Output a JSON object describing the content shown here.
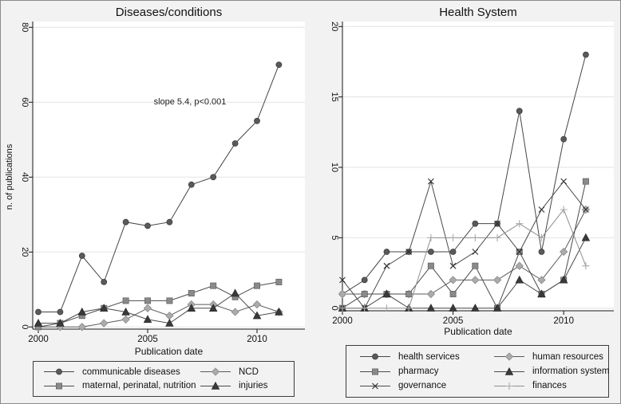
{
  "figure": {
    "background": "#f2f2f2",
    "border_color": "#8a8a8a",
    "plot_background": "#ffffff",
    "gridline_color": "#e3e3e3",
    "axis_color": "#141414"
  },
  "chart_data": [
    {
      "type": "line",
      "title": "Diseases/conditions",
      "xlabel": "Publication date",
      "ylabel": "n. of publications",
      "annotation": "slope 5.4, p<0.001",
      "x": [
        2000,
        2001,
        2002,
        2003,
        2004,
        2005,
        2006,
        2007,
        2008,
        2009,
        2010,
        2011
      ],
      "xticks": [
        2000,
        2005,
        2010
      ],
      "yticks": [
        0,
        20,
        40,
        60,
        80
      ],
      "ylim": [
        0,
        80
      ],
      "grid": true,
      "legend_position": "below",
      "series": [
        {
          "label": "communicable diseases",
          "marker": "circle",
          "fill": "#5a5a5a",
          "edge": "#3d3d3d",
          "line": "#454545",
          "values": [
            4,
            4,
            19,
            12,
            28,
            27,
            28,
            38,
            40,
            49,
            55,
            70
          ]
        },
        {
          "label": "NCD",
          "marker": "diamond",
          "fill": "#ababab",
          "edge": "#8a8a8a",
          "line": "#5a5a5a",
          "values": [
            0,
            0,
            0,
            1,
            2,
            5,
            3,
            6,
            6,
            4,
            6,
            4
          ]
        },
        {
          "label": "maternal, perinatal, nutrition",
          "marker": "square",
          "fill": "#8a8a8a",
          "edge": "#666666",
          "line": "#4a4a4a",
          "values": [
            0,
            1,
            3,
            5,
            7,
            7,
            7,
            9,
            11,
            8,
            11,
            12
          ]
        },
        {
          "label": "injuries",
          "marker": "triangle",
          "fill": "#3a3a3a",
          "edge": "#2a2a2a",
          "line": "#4a4a4a",
          "values": [
            1,
            1,
            4,
            5,
            4,
            2,
            1,
            5,
            5,
            9,
            3,
            4
          ]
        }
      ]
    },
    {
      "type": "line",
      "title": "Health System",
      "xlabel": "Publication date",
      "ylabel": "",
      "annotation": "",
      "x": [
        2000,
        2001,
        2002,
        2003,
        2004,
        2005,
        2006,
        2007,
        2008,
        2009,
        2010,
        2011
      ],
      "xticks": [
        2000,
        2005,
        2010
      ],
      "yticks": [
        0,
        5,
        10,
        15,
        20
      ],
      "ylim": [
        0,
        20
      ],
      "grid": true,
      "legend_position": "below",
      "series": [
        {
          "label": "health services",
          "marker": "circle",
          "fill": "#5a5a5a",
          "edge": "#3d3d3d",
          "line": "#454545",
          "values": [
            1,
            2,
            4,
            4,
            4,
            4,
            6,
            6,
            14,
            4,
            12,
            18
          ]
        },
        {
          "label": "human resources",
          "marker": "diamond",
          "fill": "#ababab",
          "edge": "#8a8a8a",
          "line": "#5a5a5a",
          "values": [
            1,
            1,
            1,
            1,
            1,
            2,
            2,
            2,
            3,
            2,
            4,
            7
          ]
        },
        {
          "label": "pharmacy",
          "marker": "square",
          "fill": "#8a8a8a",
          "edge": "#666666",
          "line": "#4a4a4a",
          "values": [
            0,
            1,
            1,
            1,
            3,
            1,
            3,
            0,
            4,
            1,
            2,
            9
          ]
        },
        {
          "label": "information system",
          "marker": "triangle",
          "fill": "#3a3a3a",
          "edge": "#2a2a2a",
          "line": "#4a4a4a",
          "values": [
            0,
            0,
            1,
            0,
            0,
            0,
            0,
            0,
            2,
            1,
            2,
            5
          ]
        },
        {
          "label": "governance",
          "marker": "x",
          "fill": "none",
          "edge": "#2e2e2e",
          "line": "#4a4a4a",
          "values": [
            2,
            0,
            3,
            4,
            9,
            3,
            4,
            6,
            4,
            7,
            9,
            7
          ]
        },
        {
          "label": "finances",
          "marker": "plus",
          "fill": "none",
          "edge": "#aaaaaa",
          "line": "#909090",
          "values": [
            0,
            0,
            0,
            0,
            5,
            5,
            5,
            5,
            6,
            5,
            7,
            3
          ]
        }
      ]
    }
  ]
}
